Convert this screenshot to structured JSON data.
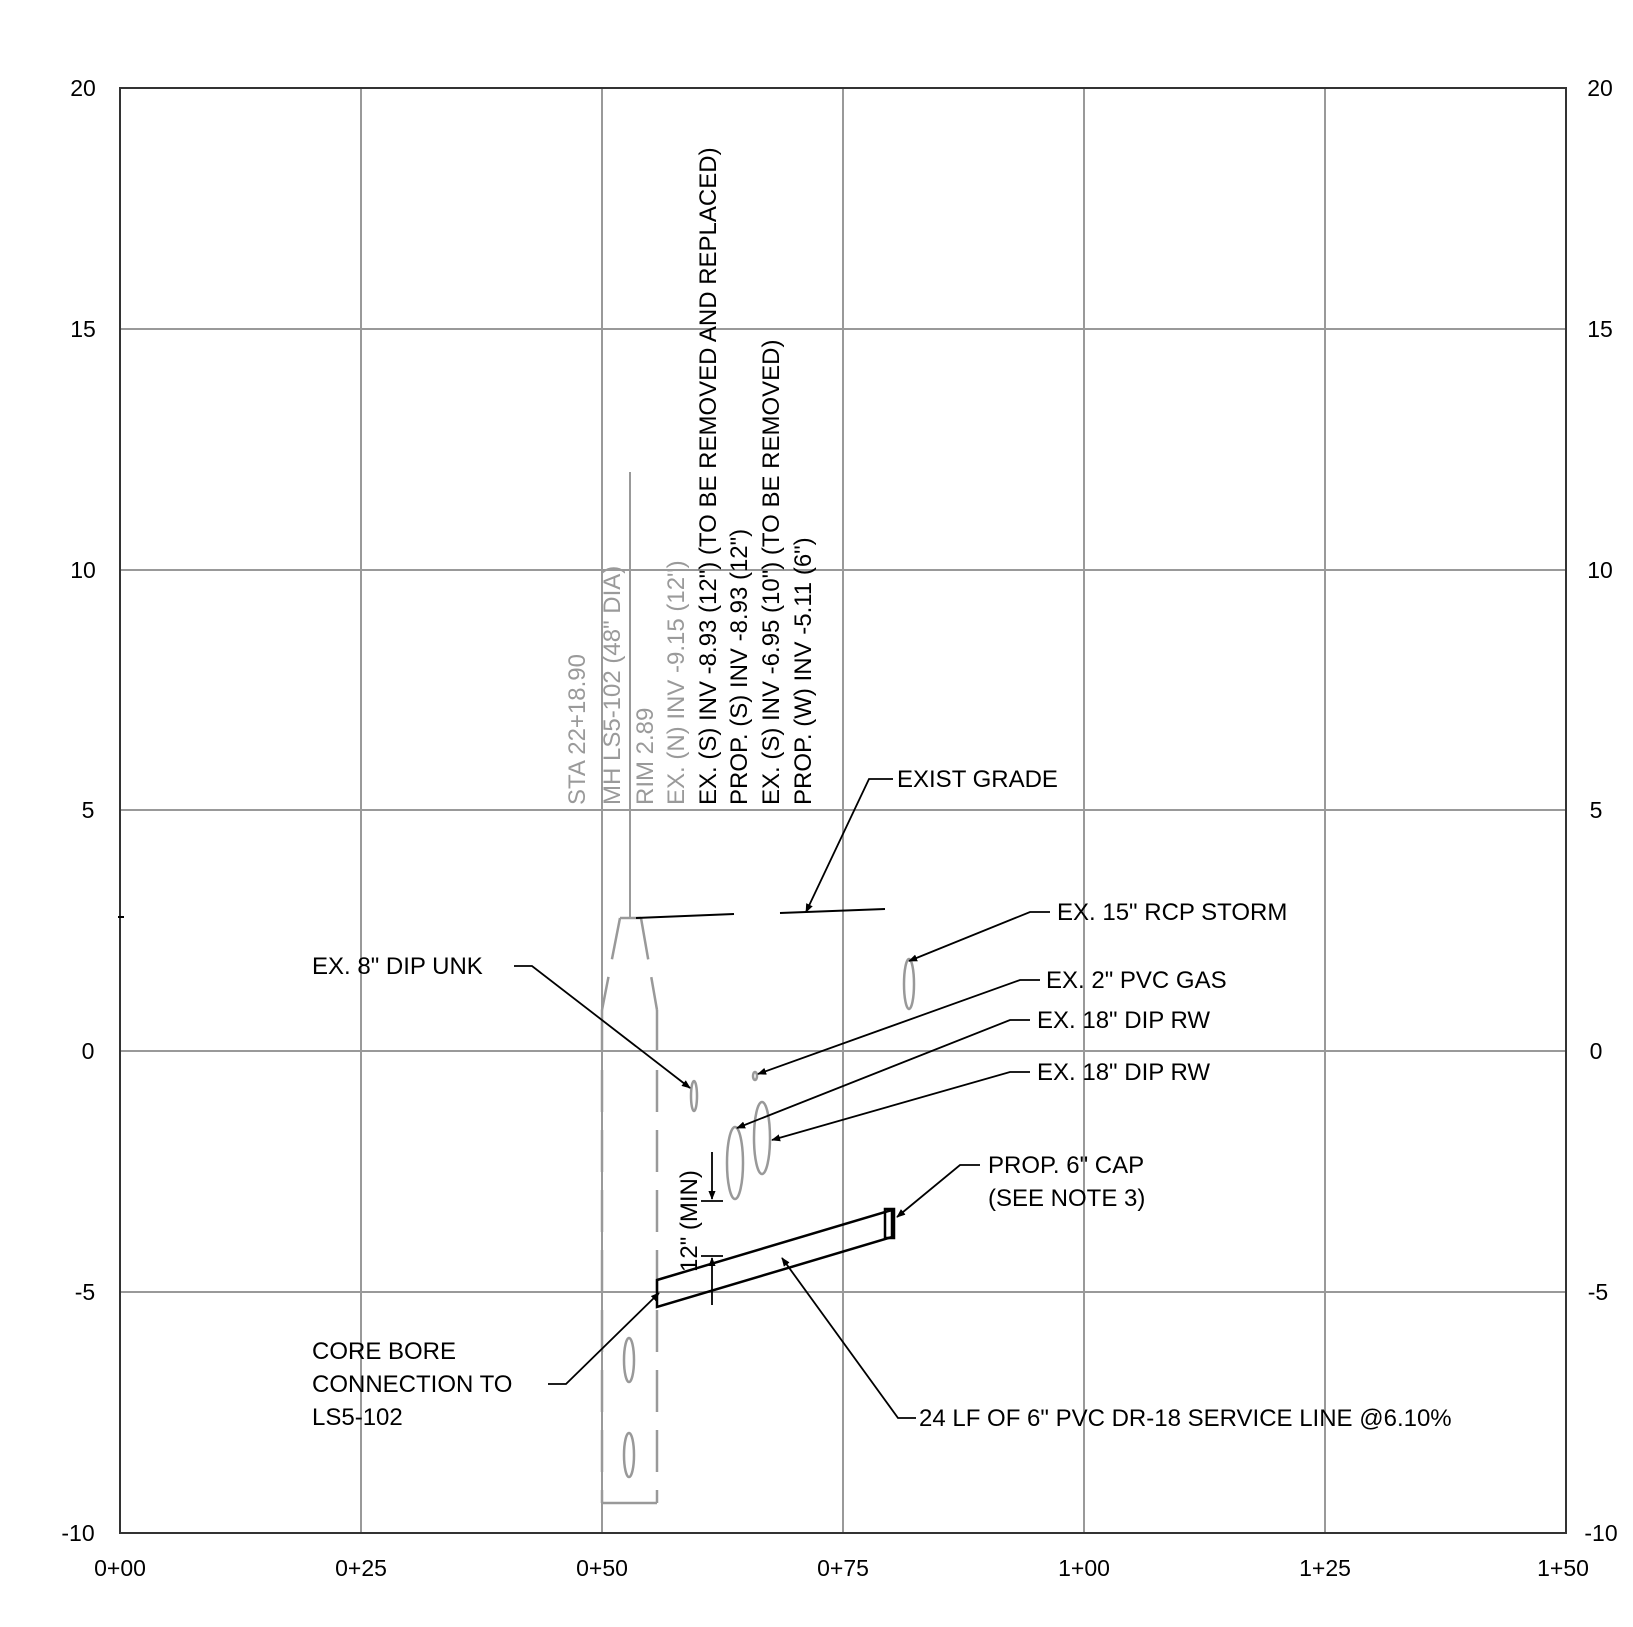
{
  "axes": {
    "x_ticks": [
      "0+00",
      "0+25",
      "0+50",
      "0+75",
      "1+00",
      "1+25",
      "1+50"
    ],
    "y_ticks_left": [
      "20",
      "15",
      "10",
      "5",
      "0",
      "-5",
      "-10"
    ],
    "y_ticks_right": [
      "20",
      "15",
      "10",
      "5",
      "0",
      "-5",
      "-10"
    ]
  },
  "colors": {
    "grid": "#999999",
    "ink": "#000000",
    "gray_text": "#9a9a9a",
    "frame": "#333333"
  },
  "manhole_labels": {
    "station": "STA 22+18.90",
    "name": "MH LS5-102 (48\" DIA)",
    "rim": "RIM 2.89",
    "inv_n": "EX. (N) INV -9.15 (12\")",
    "inv_s_ex": "EX. (S) INV -8.93 (12\") (TO BE REMOVED AND REPLACED)",
    "inv_s_prop": "PROP. (S) INV -8.93 (12\")",
    "inv_s_ex2": "EX. (S) INV -6.95 (10\") (TO BE REMOVED)",
    "inv_w_prop": "PROP. (W) INV -5.11 (6\")"
  },
  "callouts": {
    "exist_grade": "EXIST GRADE",
    "storm": "EX. 15\" RCP STORM",
    "dip_unk": "EX. 8\" DIP UNK",
    "gas": "EX. 2\" PVC GAS",
    "dip_rw_1": "EX. 18\" DIP RW",
    "dip_rw_2": "EX. 18\" DIP RW",
    "cap_line1": "PROP. 6\" CAP",
    "cap_line2": "(SEE NOTE 3)",
    "clearance": "12\" (MIN)",
    "core_line1": "CORE BORE",
    "core_line2": "CONNECTION TO",
    "core_line3": "LS5-102",
    "service_line": "24 LF OF 6\" PVC DR-18 SERVICE LINE @6.10%"
  }
}
